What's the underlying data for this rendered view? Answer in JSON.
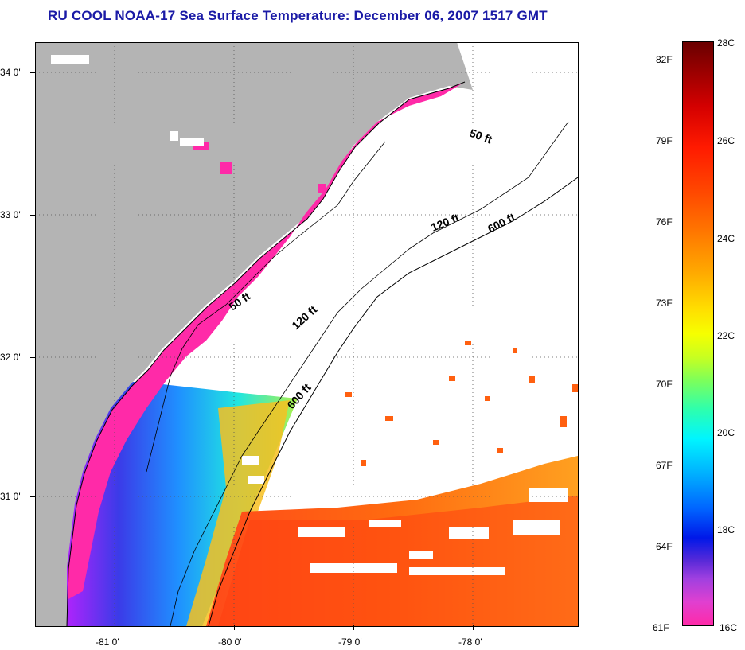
{
  "title": "RU COOL  NOAA-17  Sea Surface Temperature:  December 06, 2007 1517 GMT",
  "map": {
    "latitude_labels": [
      "34 0'",
      "33 0'",
      "32 0'",
      "31 0'"
    ],
    "longitude_labels": [
      "-81 0'",
      "-80 0'",
      "-79 0'",
      "-78 0'"
    ],
    "contour_labels": [
      "50 ft",
      "120 ft",
      "600 ft",
      "50 ft",
      "120 ft",
      "600 ft"
    ],
    "colors": {
      "land": "#b4b4b4",
      "cloud_nodata": "#ffffff",
      "coastal_cold": "#ff2aa8",
      "gulf_stream_warm": "#ff5a00"
    }
  },
  "colorbar": {
    "fahrenheit_labels": [
      "82F",
      "79F",
      "76F",
      "73F",
      "70F",
      "67F",
      "64F",
      "61F"
    ],
    "celsius_labels": [
      "28C",
      "26C",
      "24C",
      "22C",
      "20C",
      "18C",
      "16C"
    ]
  }
}
